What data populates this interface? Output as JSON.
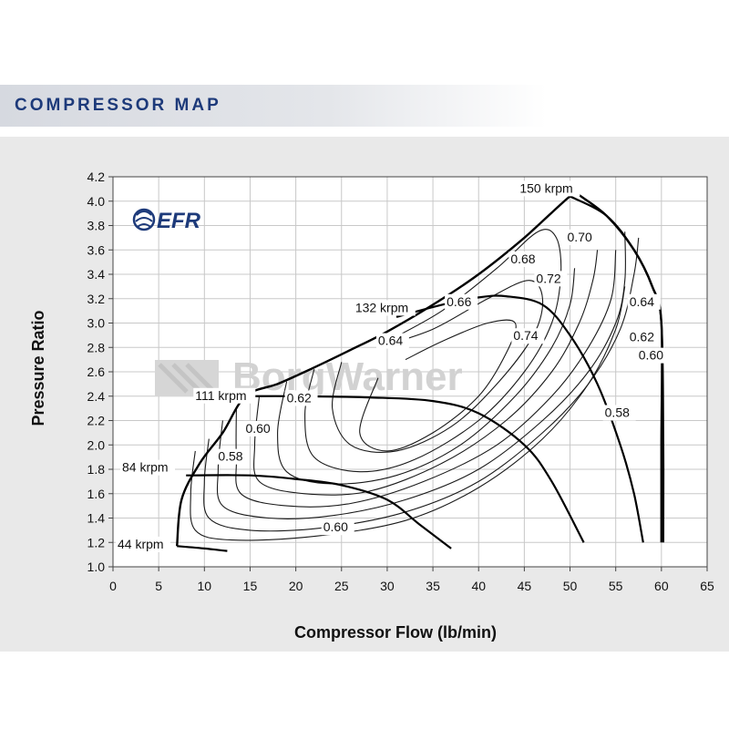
{
  "header": {
    "title": "COMPRESSOR MAP"
  },
  "brand": {
    "logo_text": "EFR",
    "watermark_text": "BorgWarner",
    "logo_color": "#1d3a7a"
  },
  "chart_data": {
    "type": "line",
    "title": "",
    "xlabel": "Compressor Flow (lb/min)",
    "ylabel": "Pressure Ratio",
    "xlim": [
      0,
      65
    ],
    "ylim": [
      1.0,
      4.2
    ],
    "xticks": [
      0,
      5,
      10,
      15,
      20,
      25,
      30,
      35,
      40,
      45,
      50,
      55,
      60,
      65
    ],
    "yticks": [
      "1.0",
      "1.2",
      "1.4",
      "1.6",
      "1.8",
      "2.0",
      "2.2",
      "2.4",
      "2.6",
      "2.8",
      "3.0",
      "3.2",
      "3.4",
      "3.6",
      "3.8",
      "4.0",
      "4.2"
    ],
    "grid": true,
    "surge_line": [
      [
        7,
        1.17
      ],
      [
        7.5,
        1.55
      ],
      [
        9.5,
        1.85
      ],
      [
        12,
        2.1
      ],
      [
        14.5,
        2.4
      ],
      [
        18,
        2.5
      ],
      [
        21,
        2.6
      ],
      [
        26,
        2.78
      ],
      [
        30,
        2.93
      ],
      [
        35,
        3.15
      ],
      [
        40,
        3.4
      ],
      [
        45,
        3.7
      ],
      [
        50,
        4.04
      ],
      [
        51,
        4.05
      ]
    ],
    "choke_line": [
      [
        51,
        4.05
      ],
      [
        54,
        3.88
      ],
      [
        57,
        3.6
      ],
      [
        59,
        3.3
      ],
      [
        60,
        3.0
      ],
      [
        60,
        2.0
      ],
      [
        60,
        1.2
      ]
    ],
    "speed_lines": [
      {
        "name": "44 krpm",
        "points": [
          [
            7,
            1.17
          ],
          [
            10,
            1.15
          ],
          [
            12.5,
            1.13
          ]
        ]
      },
      {
        "name": "84 krpm",
        "points": [
          [
            8,
            1.75
          ],
          [
            15,
            1.75
          ],
          [
            20,
            1.72
          ],
          [
            25,
            1.67
          ],
          [
            30,
            1.55
          ],
          [
            33.5,
            1.35
          ],
          [
            37,
            1.15
          ]
        ]
      },
      {
        "name": "111 krpm",
        "points": [
          [
            14.5,
            2.4
          ],
          [
            20,
            2.4
          ],
          [
            28,
            2.39
          ],
          [
            35,
            2.36
          ],
          [
            40,
            2.26
          ],
          [
            45,
            2.0
          ],
          [
            48,
            1.7
          ],
          [
            51.5,
            1.2
          ]
        ]
      },
      {
        "name": "132 krpm",
        "points": [
          [
            31,
            3.05
          ],
          [
            36,
            3.15
          ],
          [
            40,
            3.21
          ],
          [
            43,
            3.22
          ],
          [
            47,
            3.15
          ],
          [
            50,
            2.9
          ],
          [
            53,
            2.5
          ],
          [
            55.5,
            2.0
          ],
          [
            57,
            1.6
          ],
          [
            58,
            1.2
          ]
        ]
      },
      {
        "name": "150 krpm",
        "points": [
          [
            50,
            4.04
          ],
          [
            54,
            3.88
          ],
          [
            57,
            3.6
          ],
          [
            59,
            3.3
          ],
          [
            60,
            3.0
          ],
          [
            60.2,
            2.0
          ],
          [
            60.2,
            1.2
          ]
        ]
      }
    ],
    "efficiency_islands": [
      {
        "name": "0.58",
        "points": [
          [
            9,
            1.95
          ],
          [
            8.5,
            1.6
          ],
          [
            9,
            1.3
          ],
          [
            13,
            1.22
          ],
          [
            22,
            1.25
          ],
          [
            32,
            1.38
          ],
          [
            40,
            1.65
          ],
          [
            47,
            2.05
          ],
          [
            52,
            2.5
          ],
          [
            55,
            2.95
          ],
          [
            56,
            3.3
          ]
        ]
      },
      {
        "name": "0.60",
        "points": [
          [
            10.5,
            2.05
          ],
          [
            10,
            1.7
          ],
          [
            10.5,
            1.4
          ],
          [
            15,
            1.3
          ],
          [
            23,
            1.32
          ],
          [
            32,
            1.45
          ],
          [
            40,
            1.7
          ],
          [
            47,
            2.1
          ],
          [
            52,
            2.5
          ],
          [
            55.5,
            2.95
          ],
          [
            57,
            3.4
          ],
          [
            57.5,
            3.7
          ]
        ]
      },
      {
        "name": "0.62",
        "points": [
          [
            12,
            2.2
          ],
          [
            11.5,
            1.8
          ],
          [
            12,
            1.5
          ],
          [
            17,
            1.4
          ],
          [
            24,
            1.42
          ],
          [
            32,
            1.55
          ],
          [
            40,
            1.8
          ],
          [
            47,
            2.2
          ],
          [
            52,
            2.6
          ],
          [
            55,
            3.0
          ],
          [
            56,
            3.35
          ],
          [
            56,
            3.75
          ]
        ]
      },
      {
        "name": "0.64",
        "points": [
          [
            13.5,
            2.3
          ],
          [
            13.5,
            1.9
          ],
          [
            14,
            1.6
          ],
          [
            19,
            1.5
          ],
          [
            26,
            1.52
          ],
          [
            34,
            1.7
          ],
          [
            42,
            2.0
          ],
          [
            48,
            2.4
          ],
          [
            52,
            2.8
          ],
          [
            54.5,
            3.2
          ],
          [
            55,
            3.6
          ]
        ]
      },
      {
        "name": "0.66",
        "points": [
          [
            16,
            2.4
          ],
          [
            15.5,
            2.0
          ],
          [
            16,
            1.7
          ],
          [
            21,
            1.6
          ],
          [
            28,
            1.62
          ],
          [
            36,
            1.85
          ],
          [
            43,
            2.2
          ],
          [
            48,
            2.6
          ],
          [
            51,
            3.0
          ],
          [
            52.5,
            3.35
          ],
          [
            53,
            3.6
          ]
        ]
      },
      {
        "name": "0.68",
        "points": [
          [
            19,
            2.52
          ],
          [
            18,
            2.1
          ],
          [
            19,
            1.78
          ],
          [
            24,
            1.68
          ],
          [
            31,
            1.75
          ],
          [
            38,
            2.0
          ],
          [
            44,
            2.4
          ],
          [
            48,
            2.8
          ],
          [
            50,
            3.15
          ],
          [
            50.5,
            3.45
          ]
        ]
      },
      {
        "name": "0.70",
        "points": [
          [
            22,
            2.62
          ],
          [
            21,
            2.25
          ],
          [
            22,
            1.9
          ],
          [
            27,
            1.78
          ],
          [
            33,
            1.88
          ],
          [
            40,
            2.2
          ],
          [
            45,
            2.6
          ],
          [
            48,
            3.0
          ],
          [
            49,
            3.4
          ],
          [
            48.5,
            3.7
          ],
          [
            46.5,
            3.75
          ],
          [
            42,
            3.45
          ],
          [
            36,
            3.1
          ],
          [
            30,
            2.85
          ]
        ]
      },
      {
        "name": "0.72",
        "points": [
          [
            25,
            2.68
          ],
          [
            24,
            2.3
          ],
          [
            26,
            2.0
          ],
          [
            31,
            1.95
          ],
          [
            37,
            2.15
          ],
          [
            42,
            2.5
          ],
          [
            46,
            2.9
          ],
          [
            47,
            3.2
          ],
          [
            45.5,
            3.35
          ],
          [
            41,
            3.2
          ],
          [
            35,
            2.95
          ],
          [
            29,
            2.8
          ]
        ]
      },
      {
        "name": "0.74",
        "points": [
          [
            29,
            2.55
          ],
          [
            27,
            2.1
          ],
          [
            30,
            1.95
          ],
          [
            35,
            2.1
          ],
          [
            40,
            2.4
          ],
          [
            43,
            2.75
          ],
          [
            44,
            3.0
          ],
          [
            41,
            3.0
          ],
          [
            36,
            2.85
          ],
          [
            32,
            2.7
          ]
        ]
      }
    ],
    "annotations": [
      {
        "text": "150 krpm",
        "x": 44.5,
        "y": 4.07
      },
      {
        "text": "132 krpm",
        "x": 26.5,
        "y": 3.09
      },
      {
        "text": "111 krpm",
        "x": 9,
        "y": 2.37
      },
      {
        "text": "84 krpm",
        "x": 1,
        "y": 1.78
      },
      {
        "text": "44 krpm",
        "x": 0.5,
        "y": 1.15
      },
      {
        "text": "0.70",
        "x": 49.7,
        "y": 3.67
      },
      {
        "text": "0.68",
        "x": 43.5,
        "y": 3.49
      },
      {
        "text": "0.72",
        "x": 46.3,
        "y": 3.33
      },
      {
        "text": "0.66",
        "x": 36.5,
        "y": 3.14
      },
      {
        "text": "0.74",
        "x": 43.8,
        "y": 2.86
      },
      {
        "text": "0.64",
        "x": 29,
        "y": 2.82
      },
      {
        "text": "0.62",
        "x": 19,
        "y": 2.35
      },
      {
        "text": "0.60",
        "x": 14.5,
        "y": 2.1
      },
      {
        "text": "0.58",
        "x": 11.5,
        "y": 1.87
      },
      {
        "text": "0.60",
        "x": 23,
        "y": 1.29
      },
      {
        "text": "0.64",
        "x": 56.5,
        "y": 3.14
      },
      {
        "text": "0.62",
        "x": 56.5,
        "y": 2.85
      },
      {
        "text": "0.60",
        "x": 57.5,
        "y": 2.7
      },
      {
        "text": "0.58",
        "x": 53.8,
        "y": 2.23
      }
    ]
  }
}
